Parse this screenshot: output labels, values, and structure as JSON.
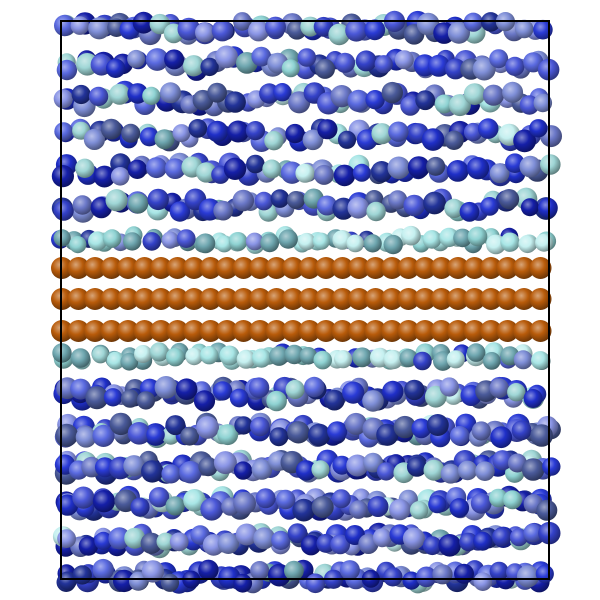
{
  "scene": {
    "type": "molecular-dynamics-snapshot",
    "background": "#ffffff",
    "box_outline_color": "#000000",
    "layers": {
      "metal_slab": {
        "color": "#b85b0a",
        "highlight": "#e08a3a",
        "shadow": "#6a3003",
        "row_count": 3
      },
      "interface_layer": {
        "colors": [
          "#a8e6e6",
          "#8fd3d3",
          "#c5f0f0",
          "#6fa7b0"
        ]
      },
      "bulk_layers": {
        "colors": [
          "#1f2fc8",
          "#2a3bd6",
          "#3442c9",
          "#4b58d8",
          "#5a6ae0",
          "#6b78c8",
          "#8a95e6",
          "#223399",
          "#151fa8",
          "#7f8fd8",
          "#4a5a9a",
          "#9fd6d6"
        ],
        "upper_row_count": 6,
        "lower_row_count": 6
      }
    }
  }
}
